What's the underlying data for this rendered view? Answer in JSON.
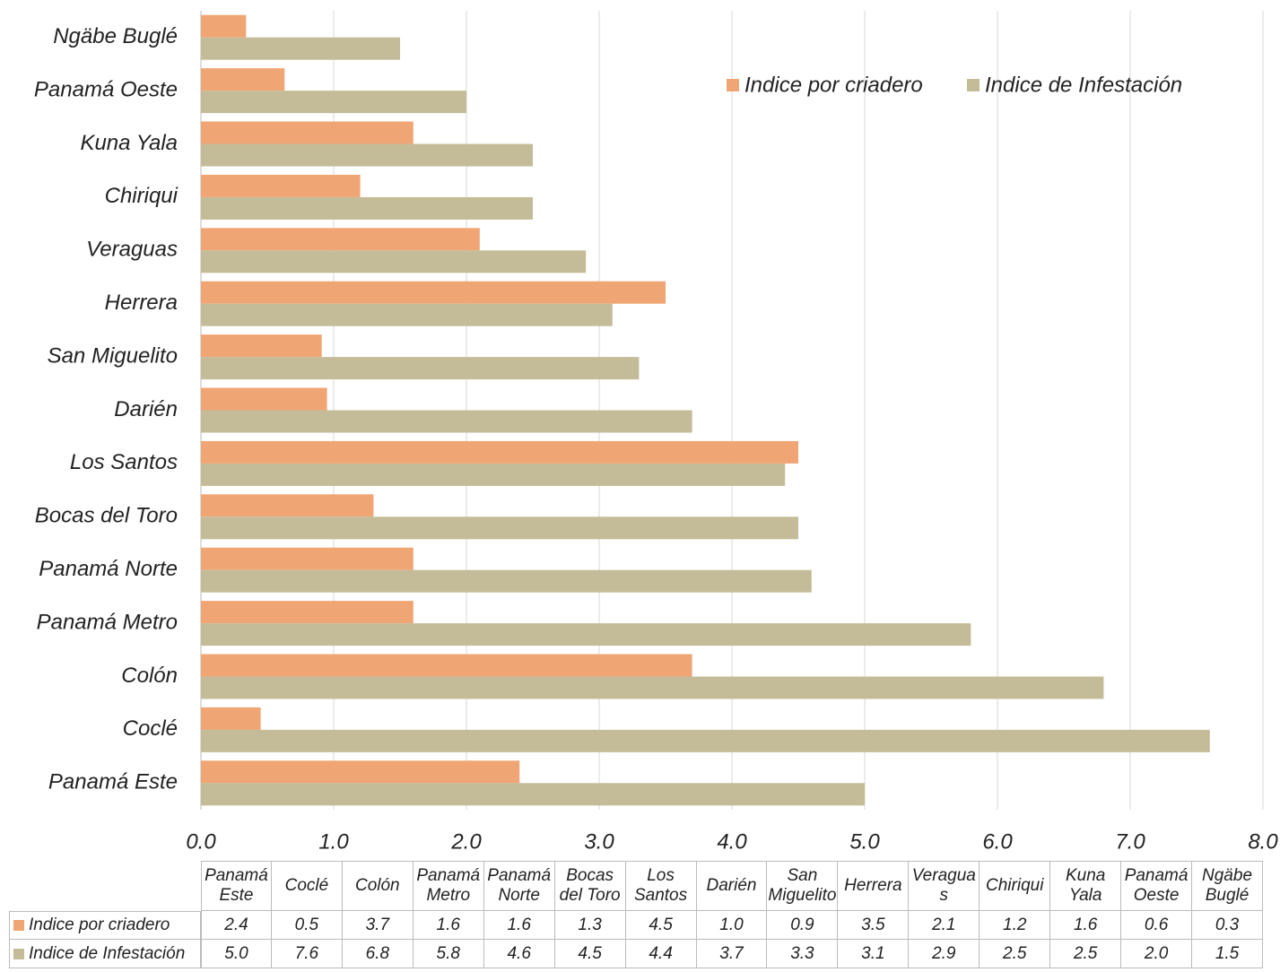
{
  "chart_data": {
    "type": "hbar",
    "categories": [
      "Panamá Este",
      "Coclé",
      "Colón",
      "Panamá Metro",
      "Panamá Norte",
      "Bocas del Toro",
      "Los Santos",
      "Darién",
      "San Miguelito",
      "Herrera",
      "Veraguas",
      "Chiriqui",
      "Kuna Yala",
      "Panamá Oeste",
      "Ngäbe Buglé"
    ],
    "series": [
      {
        "name": "Indice por criadero",
        "color": "#f0a574",
        "values": [
          2.4,
          0.45,
          3.7,
          1.6,
          1.6,
          1.3,
          4.5,
          0.95,
          0.91,
          3.5,
          2.1,
          1.2,
          1.6,
          0.63,
          0.34
        ],
        "value_labels": [
          "2.4",
          "0.5",
          "3.7",
          "1.6",
          "1.6",
          "1.3",
          "4.5",
          "1.0",
          "0.9",
          "3.5",
          "2.1",
          "1.2",
          "1.6",
          "0.6",
          "0.3"
        ]
      },
      {
        "name": "Indice de Infestación",
        "color": "#c4bc98",
        "values": [
          5.0,
          7.6,
          6.8,
          5.8,
          4.6,
          4.5,
          4.4,
          3.7,
          3.3,
          3.1,
          2.9,
          2.5,
          2.5,
          2.0,
          1.5
        ],
        "value_labels": [
          "5.0",
          "7.6",
          "6.8",
          "5.8",
          "4.6",
          "4.5",
          "4.4",
          "3.7",
          "3.3",
          "3.1",
          "2.9",
          "2.5",
          "2.5",
          "2.0",
          "1.5"
        ]
      }
    ],
    "xlim": [
      0,
      8
    ],
    "xticks": [
      {
        "value": 0,
        "label": "0.0"
      },
      {
        "value": 1,
        "label": "1.0"
      },
      {
        "value": 2,
        "label": "2.0"
      },
      {
        "value": 3,
        "label": "3.0"
      },
      {
        "value": 4,
        "label": "4.0"
      },
      {
        "value": 5,
        "label": "5.0"
      },
      {
        "value": 6,
        "label": "6.0"
      },
      {
        "value": 7,
        "label": "7.0"
      },
      {
        "value": 8,
        "label": "8.0"
      }
    ],
    "grid": true,
    "legend": "top-right"
  }
}
